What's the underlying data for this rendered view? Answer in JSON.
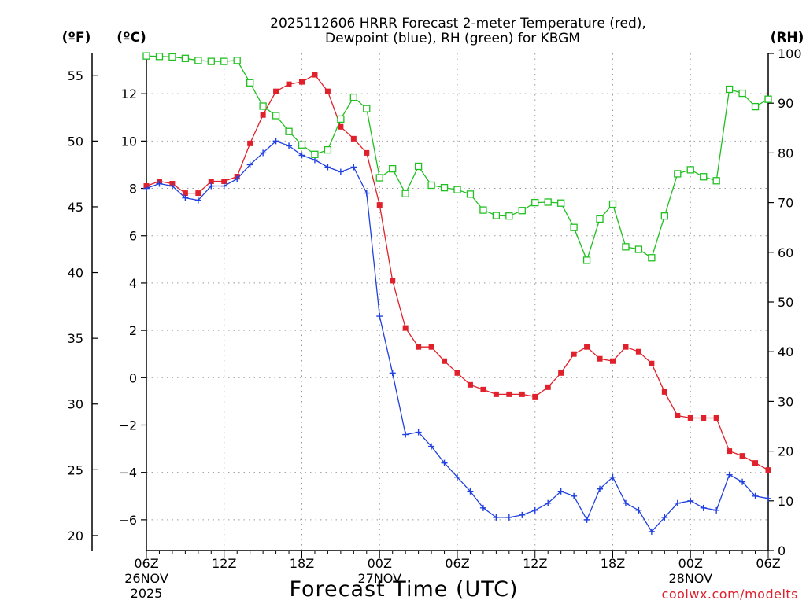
{
  "chart_data": {
    "type": "line",
    "title_line1": "2025112606 HRRR Forecast 2-meter Temperature (red),",
    "title_line2": "Dewpoint (blue), RH (green) for KBGM",
    "xlabel": "Forecast Time (UTC)",
    "credit": "coolwx.com/modelts",
    "x_hours": [
      0,
      1,
      2,
      3,
      4,
      5,
      6,
      7,
      8,
      9,
      10,
      11,
      12,
      13,
      14,
      15,
      16,
      17,
      18,
      19,
      20,
      21,
      22,
      23,
      24,
      25,
      26,
      27,
      28,
      29,
      30,
      31,
      32,
      33,
      34,
      35,
      36,
      37,
      38,
      39,
      40,
      41,
      42,
      43,
      44,
      45,
      46,
      47,
      48
    ],
    "xlim": [
      0,
      48
    ],
    "x_ticks": [
      {
        "hour": 0,
        "label": "06Z",
        "date": "26NOV",
        "year": "2025"
      },
      {
        "hour": 6,
        "label": "12Z"
      },
      {
        "hour": 12,
        "label": "18Z"
      },
      {
        "hour": 18,
        "label": "00Z",
        "date": "27NOV"
      },
      {
        "hour": 24,
        "label": "06Z"
      },
      {
        "hour": 30,
        "label": "12Z"
      },
      {
        "hour": 36,
        "label": "18Z"
      },
      {
        "hour": 42,
        "label": "00Z",
        "date": "28NOV"
      },
      {
        "hour": 48,
        "label": "06Z"
      }
    ],
    "axes": {
      "celsius": {
        "unit_label": "(ºC)",
        "ylim": [
          -7.3,
          13.7
        ],
        "ticks": [
          12,
          10,
          8,
          6,
          4,
          2,
          0,
          -2,
          -4,
          -6
        ]
      },
      "fahrenheit": {
        "unit_label": "(ºF)",
        "ticks": [
          55,
          50,
          45,
          40,
          35,
          30,
          25,
          20
        ]
      },
      "rh": {
        "unit_label": "(RH)",
        "ylim": [
          0,
          100
        ],
        "ticks": [
          100,
          90,
          80,
          70,
          60,
          50,
          40,
          30,
          20,
          10,
          0
        ]
      }
    },
    "series": [
      {
        "name": "Temperature",
        "color": "#e0202a",
        "marker": "filled-square",
        "units": "C",
        "values": [
          8.1,
          8.3,
          8.2,
          7.8,
          7.8,
          8.3,
          8.3,
          8.5,
          9.9,
          11.1,
          12.1,
          12.4,
          12.5,
          12.8,
          12.1,
          10.6,
          10.1,
          9.5,
          7.3,
          4.1,
          2.1,
          1.3,
          1.3,
          0.7,
          0.2,
          -0.3,
          -0.5,
          -0.7,
          -0.7,
          -0.7,
          -0.8,
          -0.4,
          0.2,
          1.0,
          1.3,
          0.8,
          0.7,
          1.3,
          1.1,
          0.6,
          -0.6,
          -1.6,
          -1.7,
          -1.7,
          -1.7,
          -3.1,
          -3.3,
          -3.6,
          -3.9
        ]
      },
      {
        "name": "Dewpoint",
        "color": "#2040e0",
        "marker": "plus",
        "units": "C",
        "values": [
          8.0,
          8.2,
          8.1,
          7.6,
          7.5,
          8.1,
          8.1,
          8.4,
          9.0,
          9.5,
          10.0,
          9.8,
          9.4,
          9.2,
          8.9,
          8.7,
          8.9,
          7.8,
          2.6,
          0.2,
          -2.4,
          -2.3,
          -2.9,
          -3.6,
          -4.2,
          -4.8,
          -5.5,
          -5.9,
          -5.9,
          -5.8,
          -5.6,
          -5.3,
          -4.8,
          -5.0,
          -6.0,
          -4.7,
          -4.2,
          -5.3,
          -5.6,
          -6.5,
          -5.9,
          -5.3,
          -5.2,
          -5.5,
          -5.6,
          -4.1,
          -4.4,
          -5.0,
          -5.1
        ]
      },
      {
        "name": "RH",
        "color": "#20c020",
        "marker": "open-square",
        "units": "%",
        "values": [
          99.5,
          99.4,
          99.3,
          99.0,
          98.6,
          98.4,
          98.4,
          98.6,
          94.1,
          89.4,
          87.5,
          84.3,
          81.6,
          79.7,
          80.6,
          86.8,
          91.2,
          88.9,
          75.0,
          76.8,
          71.8,
          77.3,
          73.5,
          73.0,
          72.6,
          71.7,
          68.5,
          67.4,
          67.3,
          68.4,
          70.0,
          70.1,
          69.9,
          65.0,
          58.4,
          66.7,
          69.7,
          61.1,
          60.6,
          58.9,
          67.3,
          75.8,
          76.6,
          75.2,
          74.4,
          92.8,
          92.0,
          89.3,
          90.8
        ]
      }
    ]
  }
}
